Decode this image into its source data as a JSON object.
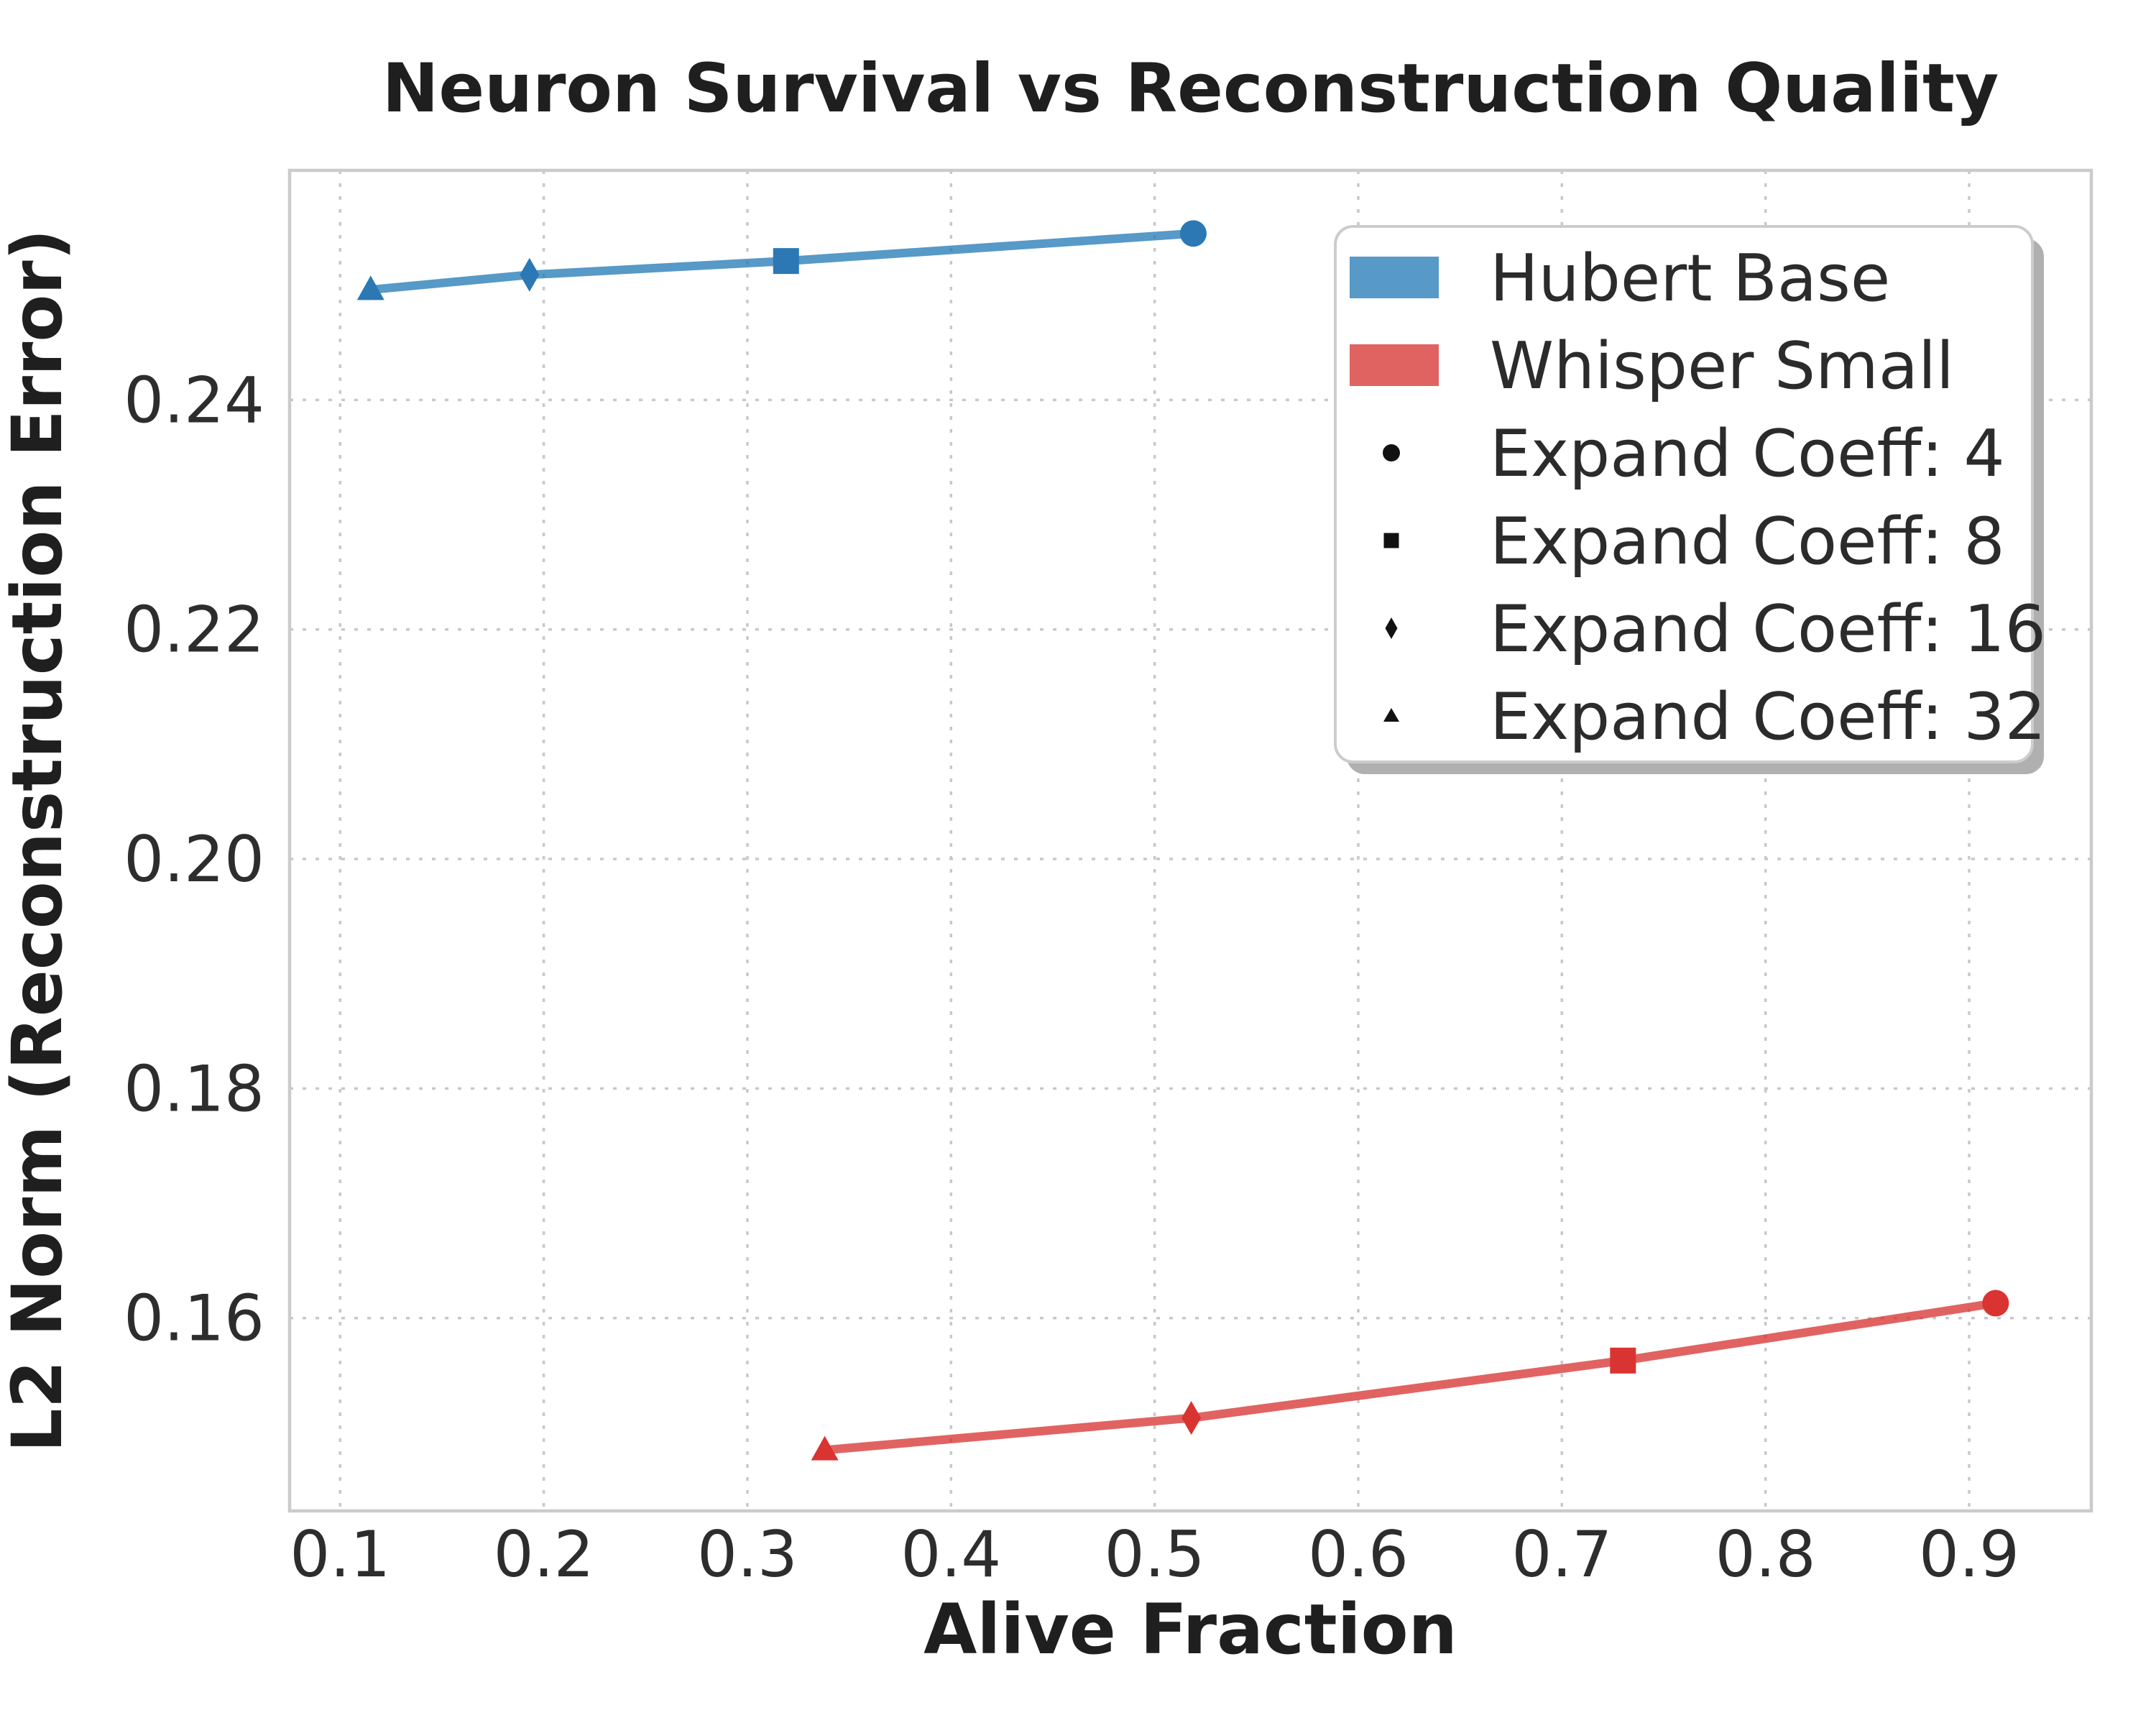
{
  "figure": {
    "background": "#ffffff"
  },
  "chart_data": {
    "type": "line",
    "title": "Neuron Survival vs Reconstruction Quality",
    "xlabel": "Alive Fraction",
    "ylabel": "L2 Norm (Reconstruction Error)",
    "xlim": [
      0.0752,
      0.96
    ],
    "ylim": [
      0.1432,
      0.26
    ],
    "xticks": [
      0.1,
      0.2,
      0.3,
      0.4,
      0.5,
      0.6,
      0.7,
      0.8,
      0.9
    ],
    "xtick_labels": [
      "0.1",
      "0.2",
      "0.3",
      "0.4",
      "0.5",
      "0.6",
      "0.7",
      "0.8",
      "0.9"
    ],
    "yticks": [
      0.16,
      0.18,
      0.2,
      0.22,
      0.24
    ],
    "ytick_labels": [
      "0.16",
      "0.18",
      "0.20",
      "0.22",
      "0.24"
    ],
    "grid": true,
    "grid_style": "dotted",
    "legend_position": "upper right",
    "series": [
      {
        "name": "Hubert Base",
        "color": "#1f77b4",
        "marker_face": "#2b78b4",
        "line_opacity": 0.75,
        "points": [
          {
            "x": 0.115,
            "y": 0.2496,
            "marker": "triangle",
            "expand_coeff": 32
          },
          {
            "x": 0.193,
            "y": 0.2509,
            "marker": "diamond",
            "expand_coeff": 16
          },
          {
            "x": 0.319,
            "y": 0.2521,
            "marker": "square",
            "expand_coeff": 8
          },
          {
            "x": 0.519,
            "y": 0.2545,
            "marker": "circle",
            "expand_coeff": 4
          }
        ]
      },
      {
        "name": "Whisper Small",
        "color": "#d62f2d",
        "marker_face": "#d93432",
        "line_opacity": 0.75,
        "points": [
          {
            "x": 0.338,
            "y": 0.1485,
            "marker": "triangle",
            "expand_coeff": 32
          },
          {
            "x": 0.518,
            "y": 0.1513,
            "marker": "diamond",
            "expand_coeff": 16
          },
          {
            "x": 0.73,
            "y": 0.1563,
            "marker": "square",
            "expand_coeff": 8
          },
          {
            "x": 0.913,
            "y": 0.1613,
            "marker": "circle",
            "expand_coeff": 4
          }
        ]
      }
    ],
    "marker_legend": [
      {
        "marker": "circle",
        "label": "Expand Coeff: 4"
      },
      {
        "marker": "square",
        "label": "Expand Coeff: 8"
      },
      {
        "marker": "diamond",
        "label": "Expand Coeff: 16"
      },
      {
        "marker": "triangle",
        "label": "Expand Coeff: 32"
      }
    ],
    "colors": {
      "grid": "#c8c8c8",
      "spine": "#cbcbcb",
      "title_text": "#1f1f1f",
      "label_text": "#1f1f1f",
      "tick_text": "#2d2d2d",
      "legend_text": "#2b2b2b",
      "legend_border": "#cccccc",
      "legend_shadow": "#b0b0b0",
      "legend_marker": "#111111",
      "legend_background": "#ffffff"
    }
  }
}
